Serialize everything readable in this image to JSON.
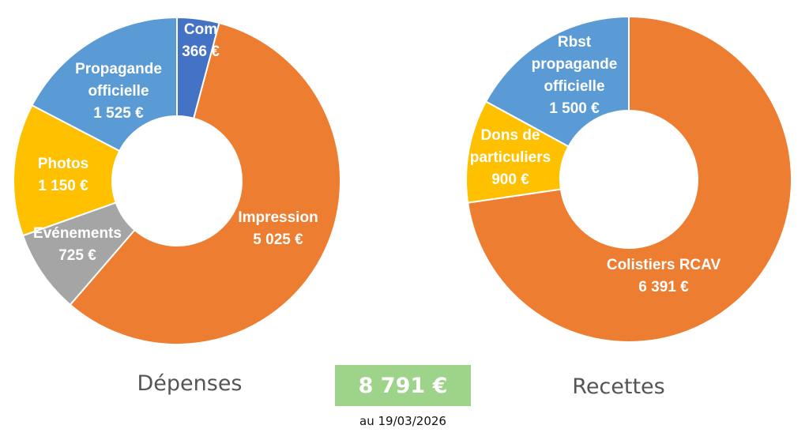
{
  "colors": {
    "accent_total": "#9ed38a"
  },
  "chart_data": [
    {
      "type": "pie",
      "title": "Dépenses",
      "slices": [
        {
          "lines": [
            "Com",
            "366 €"
          ],
          "value": 366,
          "color": "#4472c4"
        },
        {
          "lines": [
            "Impression",
            "5 025 €"
          ],
          "value": 5025,
          "color": "#ed7d31"
        },
        {
          "lines": [
            "Evénements",
            "725 €"
          ],
          "value": 725,
          "color": "#a5a5a5"
        },
        {
          "lines": [
            "Photos",
            "1 150 €"
          ],
          "value": 1150,
          "color": "#ffc000"
        },
        {
          "lines": [
            "Propagande",
            "officielle",
            "1 525 €"
          ],
          "value": 1525,
          "color": "#5b9bd5"
        }
      ]
    },
    {
      "type": "pie",
      "title": "Recettes",
      "slices": [
        {
          "lines": [
            "Colistiers RCAV",
            "6 391 €"
          ],
          "value": 6391,
          "color": "#ed7d31"
        },
        {
          "lines": [
            "Dons  de",
            "particuliers",
            "900 €"
          ],
          "value": 900,
          "color": "#ffc000"
        },
        {
          "lines": [
            "Rbst",
            "propagande",
            "officielle",
            "1 500 €"
          ],
          "value": 1500,
          "color": "#5b9bd5"
        }
      ]
    }
  ],
  "total": {
    "value_label": "8 791 €",
    "date_label": "au 19/03/2026"
  }
}
